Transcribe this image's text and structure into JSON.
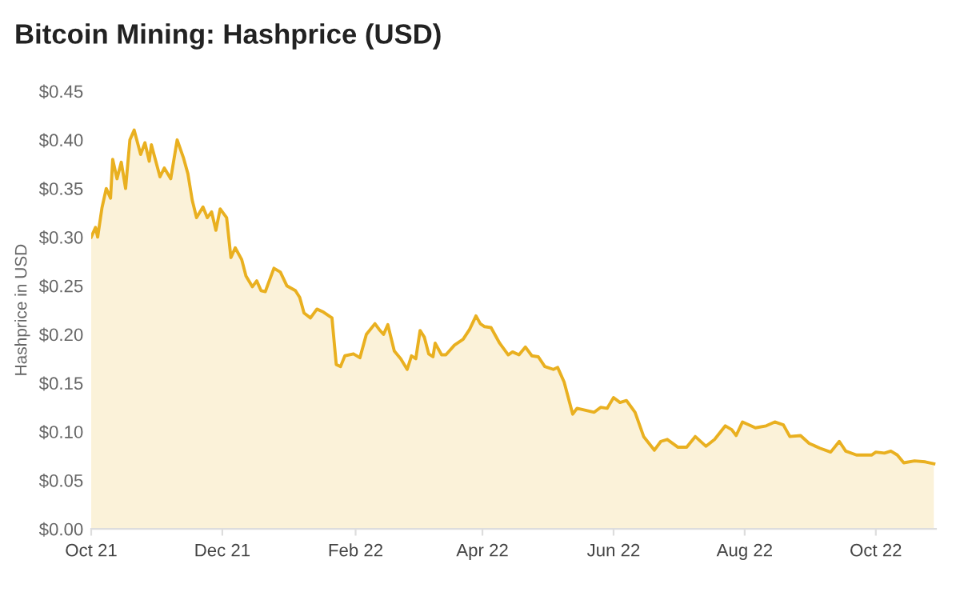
{
  "chart_data": {
    "type": "area",
    "title": "Bitcoin Mining: Hashprice (USD)",
    "ylabel": "Hashprice in USD",
    "color": "#e9b020",
    "grid": false,
    "legend": false,
    "x": [
      "2021-10-01",
      "2021-10-03",
      "2021-10-04",
      "2021-10-06",
      "2021-10-08",
      "2021-10-10",
      "2021-10-11",
      "2021-10-13",
      "2021-10-15",
      "2021-10-17",
      "2021-10-19",
      "2021-10-21",
      "2021-10-24",
      "2021-10-26",
      "2021-10-28",
      "2021-10-29",
      "2021-11-02",
      "2021-11-04",
      "2021-11-07",
      "2021-11-10",
      "2021-11-13",
      "2021-11-15",
      "2021-11-17",
      "2021-11-19",
      "2021-11-22",
      "2021-11-24",
      "2021-11-26",
      "2021-11-28",
      "2021-11-30",
      "2021-12-03",
      "2021-12-05",
      "2021-12-07",
      "2021-12-10",
      "2021-12-12",
      "2021-12-15",
      "2021-12-17",
      "2021-12-19",
      "2021-12-21",
      "2021-12-23",
      "2021-12-25",
      "2021-12-28",
      "2021-12-31",
      "2022-01-04",
      "2022-01-06",
      "2022-01-08",
      "2022-01-11",
      "2022-01-14",
      "2022-01-17",
      "2022-01-21",
      "2022-01-23",
      "2022-01-25",
      "2022-01-27",
      "2022-01-31",
      "2022-02-03",
      "2022-02-06",
      "2022-02-10",
      "2022-02-12",
      "2022-02-14",
      "2022-02-16",
      "2022-02-19",
      "2022-02-22",
      "2022-02-25",
      "2022-02-27",
      "2022-03-01",
      "2022-03-03",
      "2022-03-05",
      "2022-03-07",
      "2022-03-09",
      "2022-03-10",
      "2022-03-13",
      "2022-03-15",
      "2022-03-19",
      "2022-03-23",
      "2022-03-26",
      "2022-03-29",
      "2022-03-31",
      "2022-04-02",
      "2022-04-05",
      "2022-04-09",
      "2022-04-13",
      "2022-04-15",
      "2022-04-18",
      "2022-04-21",
      "2022-04-24",
      "2022-04-27",
      "2022-04-30",
      "2022-05-04",
      "2022-05-06",
      "2022-05-09",
      "2022-05-13",
      "2022-05-15",
      "2022-05-19",
      "2022-05-23",
      "2022-05-26",
      "2022-05-29",
      "2022-06-01",
      "2022-06-04",
      "2022-06-07",
      "2022-06-11",
      "2022-06-15",
      "2022-06-20",
      "2022-06-23",
      "2022-06-26",
      "2022-07-01",
      "2022-07-05",
      "2022-07-09",
      "2022-07-14",
      "2022-07-18",
      "2022-07-23",
      "2022-07-26",
      "2022-07-28",
      "2022-07-31",
      "2022-08-06",
      "2022-08-11",
      "2022-08-15",
      "2022-08-19",
      "2022-08-22",
      "2022-08-27",
      "2022-08-31",
      "2022-09-05",
      "2022-09-10",
      "2022-09-14",
      "2022-09-17",
      "2022-09-22",
      "2022-09-29",
      "2022-10-01",
      "2022-10-05",
      "2022-10-08",
      "2022-10-11",
      "2022-10-14",
      "2022-10-19",
      "2022-10-24",
      "2022-10-28"
    ],
    "values": [
      0.3,
      0.31,
      0.3,
      0.33,
      0.35,
      0.34,
      0.38,
      0.36,
      0.377,
      0.35,
      0.4,
      0.41,
      0.385,
      0.397,
      0.378,
      0.395,
      0.362,
      0.371,
      0.36,
      0.4,
      0.381,
      0.365,
      0.338,
      0.32,
      0.331,
      0.32,
      0.326,
      0.307,
      0.329,
      0.32,
      0.279,
      0.289,
      0.277,
      0.26,
      0.249,
      0.255,
      0.245,
      0.244,
      0.256,
      0.268,
      0.264,
      0.25,
      0.245,
      0.238,
      0.222,
      0.217,
      0.226,
      0.223,
      0.217,
      0.169,
      0.167,
      0.178,
      0.18,
      0.176,
      0.2,
      0.211,
      0.205,
      0.2,
      0.21,
      0.183,
      0.175,
      0.164,
      0.178,
      0.175,
      0.204,
      0.197,
      0.18,
      0.177,
      0.191,
      0.179,
      0.179,
      0.189,
      0.195,
      0.205,
      0.219,
      0.211,
      0.208,
      0.207,
      0.191,
      0.179,
      0.182,
      0.179,
      0.187,
      0.178,
      0.177,
      0.167,
      0.164,
      0.166,
      0.151,
      0.118,
      0.124,
      0.122,
      0.12,
      0.125,
      0.124,
      0.135,
      0.13,
      0.132,
      0.12,
      0.095,
      0.081,
      0.09,
      0.092,
      0.084,
      0.084,
      0.095,
      0.085,
      0.092,
      0.106,
      0.102,
      0.096,
      0.11,
      0.104,
      0.106,
      0.11,
      0.107,
      0.095,
      0.096,
      0.088,
      0.083,
      0.079,
      0.09,
      0.08,
      0.076,
      0.076,
      0.079,
      0.078,
      0.08,
      0.076,
      0.068,
      0.07,
      0.069,
      0.067
    ],
    "xlim": [
      "2021-10-01",
      "2022-10-29"
    ],
    "xticks": [
      {
        "value": "2021-10-01",
        "label": "Oct 21"
      },
      {
        "value": "2021-12-01",
        "label": "Dec 21"
      },
      {
        "value": "2022-02-01",
        "label": "Feb 22"
      },
      {
        "value": "2022-04-01",
        "label": "Apr 22"
      },
      {
        "value": "2022-06-01",
        "label": "Jun 22"
      },
      {
        "value": "2022-08-01",
        "label": "Aug 22"
      },
      {
        "value": "2022-10-01",
        "label": "Oct 22"
      }
    ],
    "ylim": [
      0,
      0.45
    ],
    "yticks": [
      {
        "value": 0,
        "label": "$0.00"
      },
      {
        "value": 0.05,
        "label": "$0.05"
      },
      {
        "value": 0.1,
        "label": "$0.10"
      },
      {
        "value": 0.15,
        "label": "$0.15"
      },
      {
        "value": 0.2,
        "label": "$0.20"
      },
      {
        "value": 0.25,
        "label": "$0.25"
      },
      {
        "value": 0.3,
        "label": "$0.30"
      },
      {
        "value": 0.35,
        "label": "$0.35"
      },
      {
        "value": 0.4,
        "label": "$0.40"
      },
      {
        "value": 0.45,
        "label": "$0.45"
      }
    ]
  }
}
